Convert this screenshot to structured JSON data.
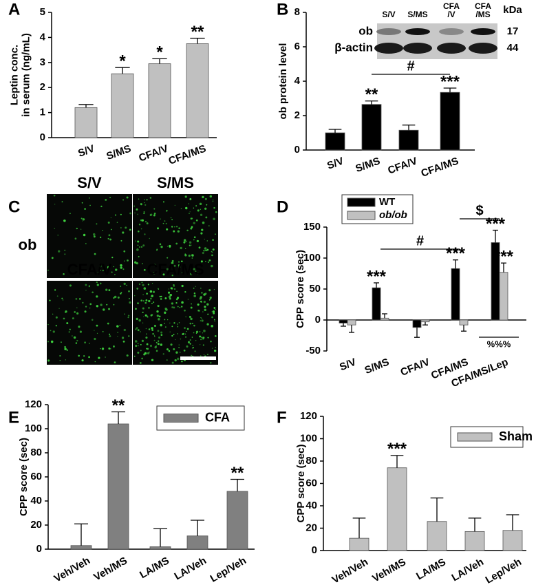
{
  "chart_data": [
    {
      "type": "bar",
      "panel": "A",
      "ylabel": [
        "Leptin conc.",
        "in serum (ng/mL)"
      ],
      "categories": [
        "S/V",
        "S/MS",
        "CFA/V",
        "CFA/MS"
      ],
      "values": [
        1.2,
        2.55,
        2.95,
        3.75
      ],
      "errors": [
        0.12,
        0.25,
        0.2,
        0.22
      ],
      "color": "#c0c0c0",
      "ylim": [
        0,
        5
      ],
      "yticks": [
        0,
        1,
        2,
        3,
        4,
        5
      ],
      "annotations": [
        "*",
        "*",
        "**"
      ]
    },
    {
      "type": "bar",
      "panel": "B",
      "ylabel": [
        "ob protein level"
      ],
      "categories": [
        "S/V",
        "S/MS",
        "CFA/V",
        "CFA/MS"
      ],
      "values": [
        1.0,
        2.65,
        1.15,
        3.35
      ],
      "errors": [
        0.2,
        0.2,
        0.3,
        0.25
      ],
      "color": "#000000",
      "ylim": [
        0,
        8
      ],
      "yticks": [
        0,
        2,
        4,
        6,
        8
      ],
      "annotations": [
        "**",
        "***",
        "#"
      ],
      "blot": {
        "lanes": [
          [
            "S/V"
          ],
          [
            "S/MS"
          ],
          [
            "CFA",
            "/V"
          ],
          [
            "CFA",
            "/MS"
          ]
        ],
        "rows": [
          "ob",
          "β-actin"
        ],
        "unit": "kDa",
        "sizes": [
          17,
          44
        ]
      }
    },
    {
      "type": "bar",
      "panel": "D",
      "ylabel": [
        "CPP score (sec)"
      ],
      "categories": [
        "S/V",
        "S/MS",
        "CFA/V",
        "CFA/MS",
        "CFA/MS/Lep"
      ],
      "series": [
        {
          "name": "WT",
          "color": "#000000",
          "values": [
            -5,
            52,
            -12,
            83,
            125
          ],
          "errors": [
            5,
            8,
            16,
            14,
            20
          ]
        },
        {
          "name": "ob/ob",
          "color": "#c0c0c0",
          "values": [
            -8,
            3,
            -3,
            -8,
            77
          ],
          "errors": [
            12,
            7,
            5,
            10,
            15
          ]
        }
      ],
      "ylim": [
        -50,
        150
      ],
      "yticks": [
        -50,
        0,
        50,
        100,
        150
      ],
      "legend": "upper left",
      "annotations": [
        "***",
        "***",
        "***",
        "***",
        "#",
        "$",
        "%%%"
      ]
    },
    {
      "type": "bar",
      "panel": "E",
      "ylabel": [
        "CPP score (sec)"
      ],
      "categories": [
        "Veh/Veh",
        "Veh/MS",
        "LA/MS",
        "LA/Veh",
        "Lep/Veh"
      ],
      "series": [
        {
          "name": "CFA",
          "color": "#808080",
          "values": [
            3,
            104,
            2,
            11,
            48
          ],
          "errors": [
            18,
            10,
            15,
            13,
            10
          ]
        }
      ],
      "ylim": [
        0,
        120
      ],
      "yticks": [
        0,
        20,
        40,
        60,
        80,
        100,
        120
      ],
      "legend": "upper right",
      "annotations": [
        "**",
        "**"
      ]
    },
    {
      "type": "bar",
      "panel": "F",
      "ylabel": [
        "CPP score (sec)"
      ],
      "categories": [
        "Veh/Veh",
        "Veh/MS",
        "LA/MS",
        "LA/Veh",
        "Lep/Veh"
      ],
      "series": [
        {
          "name": "Sham",
          "color": "#c0c0c0",
          "values": [
            11,
            74,
            26,
            17,
            18
          ],
          "errors": [
            18,
            11,
            21,
            12,
            14
          ]
        }
      ],
      "ylim": [
        0,
        120
      ],
      "yticks": [
        0,
        20,
        40,
        60,
        80,
        100,
        120
      ],
      "legend": "upper right",
      "annotations": [
        "***"
      ]
    }
  ],
  "figure_c": {
    "panel": "C",
    "row_label": "ob",
    "image_labels": [
      "S/V",
      "S/MS",
      "CFA/V",
      "CFA/MS"
    ]
  }
}
